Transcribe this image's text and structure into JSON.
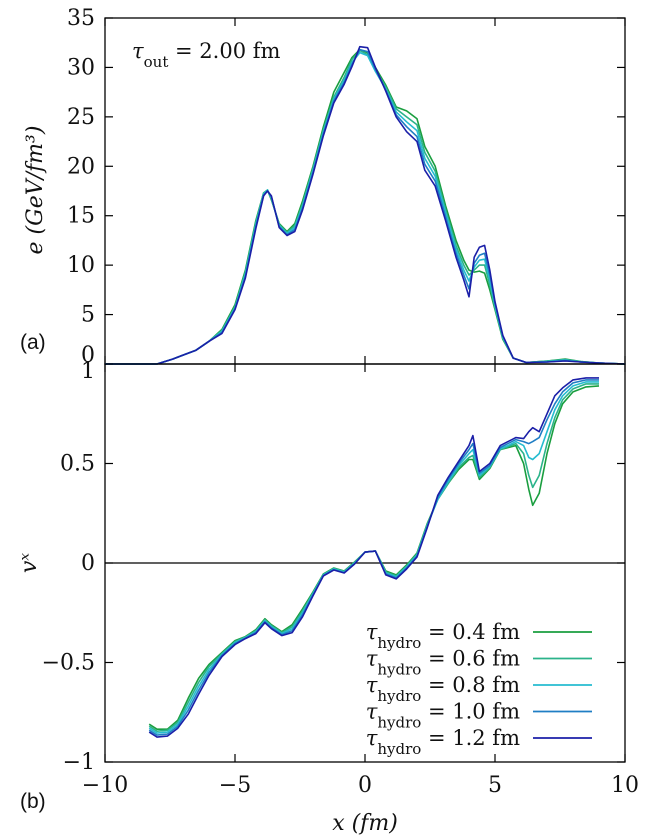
{
  "chart_data": [
    {
      "type": "line",
      "panel_label": "(a)",
      "annotation": "τout = 2.00 fm",
      "annotation_symbol": "τ",
      "annotation_sub": "out",
      "annotation_rest": " = 2.00 fm",
      "ylabel": "e (GeV/fm³)",
      "xlim": [
        -10,
        10
      ],
      "ylim": [
        0,
        35
      ],
      "yticks": [
        0,
        5,
        10,
        15,
        20,
        25,
        30,
        35
      ],
      "ytick_labels": [
        "0",
        "5",
        "10",
        "15",
        "20",
        "25",
        "30",
        "35"
      ],
      "series": [
        {
          "name": "τhydro = 0.4 fm",
          "color": "#1a9e3f",
          "x": [
            -10,
            -8,
            -7.4,
            -7,
            -6.5,
            -6,
            -5.5,
            -5,
            -4.6,
            -4.2,
            -3.9,
            -3.75,
            -3.6,
            -3.3,
            -3.0,
            -2.7,
            -2.4,
            -2.0,
            -1.6,
            -1.2,
            -0.8,
            -0.5,
            -0.2,
            0.1,
            0.4,
            0.8,
            1.2,
            1.6,
            2.0,
            2.3,
            2.7,
            3.1,
            3.5,
            3.8,
            4.0,
            4.2,
            4.4,
            4.6,
            4.8,
            5.0,
            5.3,
            5.7,
            6.2,
            7.0,
            7.7,
            8.3,
            9.0,
            10
          ],
          "y": [
            0,
            0,
            0.5,
            0.9,
            1.4,
            2.3,
            3.5,
            6.0,
            9.5,
            14.5,
            17.3,
            17.6,
            16.6,
            14.2,
            13.4,
            14.2,
            16.5,
            20.0,
            24.0,
            27.5,
            29.5,
            31.0,
            31.8,
            31.5,
            30.0,
            28.2,
            26.0,
            25.6,
            24.8,
            22.0,
            20.0,
            16.0,
            12.5,
            10.5,
            9.5,
            9.3,
            9.4,
            9.2,
            7.5,
            5.5,
            2.5,
            0.6,
            0.15,
            0.3,
            0.5,
            0.25,
            0.1,
            0
          ]
        },
        {
          "name": "τhydro = 0.6 fm",
          "color": "#2bb38a",
          "x": [
            -10,
            -8,
            -7.4,
            -7,
            -6.5,
            -6,
            -5.5,
            -5,
            -4.6,
            -4.2,
            -3.9,
            -3.75,
            -3.6,
            -3.3,
            -3.0,
            -2.7,
            -2.4,
            -2.0,
            -1.6,
            -1.2,
            -0.8,
            -0.5,
            -0.2,
            0.1,
            0.4,
            0.8,
            1.2,
            1.6,
            2.0,
            2.3,
            2.7,
            3.1,
            3.5,
            3.8,
            4.0,
            4.2,
            4.4,
            4.6,
            4.8,
            5.0,
            5.3,
            5.7,
            6.2,
            7.0,
            7.7,
            8.3,
            9.0,
            10
          ],
          "y": [
            0,
            0,
            0.5,
            0.9,
            1.4,
            2.3,
            3.4,
            5.8,
            9.3,
            14.3,
            17.3,
            17.6,
            16.7,
            14.1,
            13.3,
            14.0,
            16.2,
            19.8,
            23.7,
            27.0,
            29.0,
            30.8,
            31.7,
            31.3,
            29.8,
            28.0,
            25.8,
            25.0,
            24.2,
            21.4,
            19.5,
            15.6,
            12.0,
            10.0,
            9.0,
            9.5,
            10.0,
            10.0,
            8.0,
            5.7,
            2.6,
            0.6,
            0.15,
            0.3,
            0.45,
            0.25,
            0.1,
            0
          ]
        },
        {
          "name": "τhydro = 0.8 fm",
          "color": "#26bcd0",
          "x": [
            -10,
            -8,
            -7.4,
            -7,
            -6.5,
            -6,
            -5.5,
            -5,
            -4.6,
            -4.2,
            -3.9,
            -3.75,
            -3.6,
            -3.3,
            -3.0,
            -2.7,
            -2.4,
            -2.0,
            -1.6,
            -1.2,
            -0.8,
            -0.5,
            -0.2,
            0.1,
            0.4,
            0.8,
            1.2,
            1.6,
            2.0,
            2.3,
            2.7,
            3.1,
            3.5,
            3.8,
            4.0,
            4.2,
            4.4,
            4.6,
            4.8,
            5.0,
            5.3,
            5.7,
            6.2,
            7.0,
            7.7,
            8.3,
            9.0,
            10
          ],
          "y": [
            0,
            0,
            0.5,
            0.9,
            1.4,
            2.3,
            3.3,
            5.7,
            9.1,
            14.1,
            17.2,
            17.6,
            16.8,
            14.0,
            13.2,
            13.8,
            16.0,
            19.6,
            23.5,
            26.8,
            28.7,
            30.5,
            31.5,
            31.2,
            29.6,
            27.8,
            25.5,
            24.5,
            23.6,
            20.8,
            19.0,
            15.3,
            11.6,
            9.5,
            8.4,
            9.8,
            10.5,
            10.6,
            8.5,
            5.9,
            2.7,
            0.6,
            0.15,
            0.25,
            0.4,
            0.2,
            0.1,
            0
          ]
        },
        {
          "name": "τhydro = 1.0 fm",
          "color": "#1f7ec4",
          "x": [
            -10,
            -8,
            -7.4,
            -7,
            -6.5,
            -6,
            -5.5,
            -5,
            -4.6,
            -4.2,
            -3.9,
            -3.75,
            -3.6,
            -3.3,
            -3.0,
            -2.7,
            -2.4,
            -2.0,
            -1.6,
            -1.2,
            -0.8,
            -0.5,
            -0.2,
            0.1,
            0.4,
            0.8,
            1.2,
            1.6,
            2.0,
            2.3,
            2.7,
            3.1,
            3.5,
            3.8,
            4.0,
            4.2,
            4.4,
            4.6,
            4.8,
            5.0,
            5.3,
            5.7,
            6.2,
            7.0,
            7.7,
            8.3,
            9.0,
            10
          ],
          "y": [
            0,
            0,
            0.5,
            0.9,
            1.4,
            2.3,
            3.2,
            5.6,
            8.9,
            13.9,
            17.1,
            17.5,
            16.9,
            13.9,
            13.1,
            13.6,
            15.8,
            19.4,
            23.3,
            26.6,
            28.5,
            30.3,
            31.8,
            31.6,
            29.8,
            27.7,
            25.2,
            24.0,
            23.0,
            20.2,
            18.5,
            14.9,
            11.2,
            9.0,
            7.6,
            10.2,
            11.0,
            11.2,
            9.0,
            6.1,
            2.8,
            0.6,
            0.15,
            0.2,
            0.35,
            0.2,
            0.1,
            0
          ]
        },
        {
          "name": "τhydro = 1.2 fm",
          "color": "#1b1fa8",
          "x": [
            -10,
            -8,
            -7.4,
            -7,
            -6.5,
            -6,
            -5.5,
            -5,
            -4.6,
            -4.2,
            -3.9,
            -3.75,
            -3.6,
            -3.3,
            -3.0,
            -2.7,
            -2.4,
            -2.0,
            -1.6,
            -1.2,
            -0.8,
            -0.5,
            -0.2,
            0.1,
            0.4,
            0.8,
            1.2,
            1.6,
            2.0,
            2.3,
            2.7,
            3.1,
            3.5,
            3.8,
            4.0,
            4.2,
            4.4,
            4.6,
            4.8,
            5.0,
            5.3,
            5.7,
            6.2,
            7.0,
            7.7,
            8.3,
            9.0,
            10
          ],
          "y": [
            0,
            0,
            0.5,
            0.9,
            1.4,
            2.3,
            3.1,
            5.5,
            8.7,
            13.7,
            17.0,
            17.5,
            17.0,
            13.8,
            13.0,
            13.4,
            15.6,
            19.2,
            23.1,
            26.4,
            28.3,
            30.1,
            32.1,
            32.0,
            30.0,
            27.6,
            25.0,
            23.5,
            22.5,
            19.6,
            18.0,
            14.5,
            10.8,
            8.5,
            6.8,
            10.8,
            11.8,
            12.0,
            9.5,
            6.3,
            2.9,
            0.6,
            0.15,
            0.2,
            0.3,
            0.2,
            0.1,
            0
          ]
        }
      ]
    },
    {
      "type": "line",
      "panel_label": "(b)",
      "xlabel": "x (fm)",
      "ylabel": "vˣ",
      "xlim": [
        -10,
        10
      ],
      "ylim": [
        -1,
        1
      ],
      "xticks": [
        -10,
        -5,
        0,
        5,
        10
      ],
      "xtick_labels": [
        "−10",
        "−5",
        "0",
        "5",
        "10"
      ],
      "yticks": [
        -1,
        -0.5,
        0,
        0.5,
        1
      ],
      "ytick_labels": [
        "−1",
        "−0.5",
        "0",
        "0.5",
        "1"
      ],
      "legend_position": "bottom-right",
      "series": [
        {
          "name": "τhydro = 0.4 fm",
          "color": "#1a9e3f",
          "x": [
            -8.3,
            -8.0,
            -7.6,
            -7.2,
            -6.8,
            -6.4,
            -6.0,
            -5.5,
            -5.0,
            -4.6,
            -4.2,
            -3.85,
            -3.6,
            -3.2,
            -2.8,
            -2.4,
            -2.0,
            -1.6,
            -1.2,
            -0.8,
            -0.4,
            0.0,
            0.4,
            0.8,
            1.2,
            1.6,
            2.0,
            2.4,
            2.8,
            3.2,
            3.6,
            4.0,
            4.15,
            4.4,
            4.8,
            5.2,
            5.5,
            5.8,
            6.1,
            6.3,
            6.45,
            6.7,
            7.0,
            7.3,
            7.6,
            8.0,
            8.5,
            9.0
          ],
          "y": [
            -0.81,
            -0.835,
            -0.835,
            -0.79,
            -0.68,
            -0.58,
            -0.51,
            -0.45,
            -0.39,
            -0.37,
            -0.335,
            -0.28,
            -0.31,
            -0.345,
            -0.31,
            -0.23,
            -0.145,
            -0.055,
            -0.025,
            -0.04,
            0.005,
            0.055,
            0.06,
            -0.04,
            -0.06,
            -0.01,
            0.05,
            0.2,
            0.32,
            0.4,
            0.47,
            0.52,
            0.52,
            0.42,
            0.475,
            0.57,
            0.58,
            0.59,
            0.5,
            0.37,
            0.29,
            0.35,
            0.55,
            0.7,
            0.8,
            0.86,
            0.885,
            0.89
          ]
        },
        {
          "name": "τhydro = 0.6 fm",
          "color": "#2bb38a",
          "x": [
            -8.3,
            -8.0,
            -7.6,
            -7.2,
            -6.8,
            -6.4,
            -6.0,
            -5.5,
            -5.0,
            -4.6,
            -4.2,
            -3.85,
            -3.6,
            -3.2,
            -2.8,
            -2.4,
            -2.0,
            -1.6,
            -1.2,
            -0.8,
            -0.4,
            0.0,
            0.4,
            0.8,
            1.2,
            1.6,
            2.0,
            2.4,
            2.8,
            3.2,
            3.6,
            4.0,
            4.15,
            4.4,
            4.8,
            5.2,
            5.5,
            5.8,
            6.1,
            6.3,
            6.45,
            6.7,
            7.0,
            7.3,
            7.6,
            8.0,
            8.5,
            9.0
          ],
          "y": [
            -0.82,
            -0.845,
            -0.84,
            -0.8,
            -0.7,
            -0.6,
            -0.52,
            -0.455,
            -0.395,
            -0.372,
            -0.34,
            -0.285,
            -0.315,
            -0.35,
            -0.32,
            -0.24,
            -0.15,
            -0.058,
            -0.027,
            -0.042,
            0.003,
            0.055,
            0.06,
            -0.045,
            -0.065,
            -0.015,
            0.045,
            0.195,
            0.32,
            0.4,
            0.48,
            0.53,
            0.54,
            0.43,
            0.48,
            0.57,
            0.585,
            0.6,
            0.55,
            0.44,
            0.38,
            0.44,
            0.6,
            0.73,
            0.82,
            0.875,
            0.9,
            0.9
          ]
        },
        {
          "name": "τhydro = 0.8 fm",
          "color": "#26bcd0",
          "x": [
            -8.3,
            -8.0,
            -7.6,
            -7.2,
            -6.8,
            -6.4,
            -6.0,
            -5.5,
            -5.0,
            -4.6,
            -4.2,
            -3.85,
            -3.6,
            -3.2,
            -2.8,
            -2.4,
            -2.0,
            -1.6,
            -1.2,
            -0.8,
            -0.4,
            0.0,
            0.4,
            0.8,
            1.2,
            1.6,
            2.0,
            2.4,
            2.8,
            3.2,
            3.6,
            4.0,
            4.15,
            4.4,
            4.8,
            5.2,
            5.5,
            5.8,
            6.1,
            6.3,
            6.45,
            6.7,
            7.0,
            7.3,
            7.6,
            8.0,
            8.5,
            9.0
          ],
          "y": [
            -0.83,
            -0.855,
            -0.85,
            -0.81,
            -0.72,
            -0.62,
            -0.535,
            -0.46,
            -0.4,
            -0.375,
            -0.345,
            -0.29,
            -0.32,
            -0.355,
            -0.33,
            -0.25,
            -0.155,
            -0.06,
            -0.03,
            -0.045,
            0.0,
            0.055,
            0.06,
            -0.05,
            -0.07,
            -0.02,
            0.04,
            0.19,
            0.32,
            0.41,
            0.49,
            0.55,
            0.57,
            0.44,
            0.485,
            0.575,
            0.59,
            0.61,
            0.59,
            0.53,
            0.52,
            0.55,
            0.66,
            0.77,
            0.84,
            0.89,
            0.91,
            0.91
          ]
        },
        {
          "name": "τhydro = 1.0 fm",
          "color": "#1f7ec4",
          "x": [
            -8.3,
            -8.0,
            -7.6,
            -7.2,
            -6.8,
            -6.4,
            -6.0,
            -5.5,
            -5.0,
            -4.6,
            -4.2,
            -3.85,
            -3.6,
            -3.2,
            -2.8,
            -2.4,
            -2.0,
            -1.6,
            -1.2,
            -0.8,
            -0.4,
            0.0,
            0.4,
            0.8,
            1.2,
            1.6,
            2.0,
            2.4,
            2.8,
            3.2,
            3.6,
            4.0,
            4.15,
            4.4,
            4.8,
            5.2,
            5.5,
            5.8,
            6.1,
            6.3,
            6.45,
            6.7,
            7.0,
            7.3,
            7.6,
            8.0,
            8.5,
            9.0
          ],
          "y": [
            -0.84,
            -0.865,
            -0.86,
            -0.82,
            -0.74,
            -0.64,
            -0.55,
            -0.465,
            -0.405,
            -0.378,
            -0.35,
            -0.295,
            -0.325,
            -0.36,
            -0.34,
            -0.26,
            -0.16,
            -0.063,
            -0.033,
            -0.048,
            -0.003,
            0.055,
            0.06,
            -0.055,
            -0.075,
            -0.025,
            0.035,
            0.185,
            0.33,
            0.42,
            0.5,
            0.57,
            0.6,
            0.45,
            0.49,
            0.58,
            0.6,
            0.62,
            0.61,
            0.6,
            0.61,
            0.63,
            0.72,
            0.8,
            0.86,
            0.905,
            0.92,
            0.92
          ]
        },
        {
          "name": "τhydro = 1.2 fm",
          "color": "#1b1fa8",
          "x": [
            -8.3,
            -8.0,
            -7.6,
            -7.2,
            -6.8,
            -6.4,
            -6.0,
            -5.5,
            -5.0,
            -4.6,
            -4.2,
            -3.85,
            -3.6,
            -3.2,
            -2.8,
            -2.4,
            -2.0,
            -1.6,
            -1.2,
            -0.8,
            -0.4,
            0.0,
            0.4,
            0.8,
            1.2,
            1.6,
            2.0,
            2.4,
            2.8,
            3.2,
            3.6,
            4.0,
            4.15,
            4.4,
            4.8,
            5.2,
            5.5,
            5.8,
            6.1,
            6.3,
            6.45,
            6.7,
            7.0,
            7.3,
            7.6,
            8.0,
            8.5,
            9.0
          ],
          "y": [
            -0.85,
            -0.875,
            -0.87,
            -0.83,
            -0.76,
            -0.66,
            -0.565,
            -0.47,
            -0.41,
            -0.38,
            -0.355,
            -0.3,
            -0.33,
            -0.365,
            -0.35,
            -0.27,
            -0.165,
            -0.065,
            -0.035,
            -0.05,
            -0.005,
            0.055,
            0.06,
            -0.06,
            -0.08,
            -0.03,
            0.03,
            0.18,
            0.34,
            0.43,
            0.51,
            0.59,
            0.64,
            0.46,
            0.5,
            0.59,
            0.61,
            0.63,
            0.625,
            0.66,
            0.68,
            0.66,
            0.75,
            0.84,
            0.88,
            0.92,
            0.93,
            0.93
          ]
        }
      ]
    }
  ]
}
